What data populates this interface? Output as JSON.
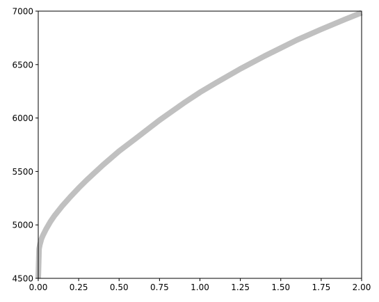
{
  "chart_data": {
    "type": "line",
    "title": "",
    "xlabel": "",
    "ylabel": "",
    "xlim": [
      0,
      2
    ],
    "ylim": [
      4500,
      7000
    ],
    "x_ticks": [
      "0.00",
      "0.25",
      "0.50",
      "0.75",
      "1.00",
      "1.25",
      "1.50",
      "1.75",
      "2.00"
    ],
    "y_ticks": [
      "4500",
      "5000",
      "5500",
      "6000",
      "6500",
      "7000"
    ],
    "grid": false,
    "legend": "none",
    "series": [
      {
        "color": "#c0c0c0",
        "x": [
          0.0,
          0.005,
          0.01,
          0.02,
          0.03,
          0.05,
          0.075,
          0.1,
          0.15,
          0.2,
          0.25,
          0.3,
          0.4,
          0.5,
          0.6,
          0.75,
          0.9,
          1.0,
          1.1,
          1.25,
          1.4,
          1.5,
          1.6,
          1.75,
          1.9,
          2.0
        ],
        "y": [
          4500,
          4775,
          4815,
          4870,
          4905,
          4965,
          5030,
          5085,
          5180,
          5265,
          5345,
          5420,
          5560,
          5690,
          5805,
          5980,
          6140,
          6240,
          6330,
          6460,
          6580,
          6655,
          6730,
          6830,
          6925,
          6985
        ]
      }
    ]
  }
}
